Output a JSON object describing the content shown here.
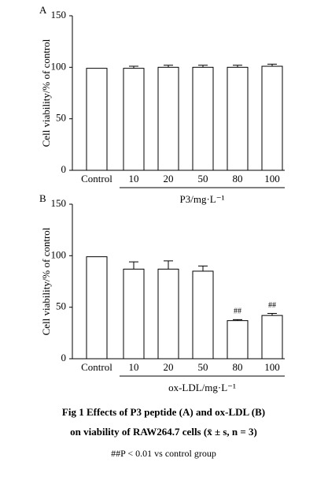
{
  "chart_data": [
    {
      "type": "bar",
      "panel": "A",
      "ylabel": "Cell viability/% of control",
      "xlabel": "P3/mg·L⁻¹",
      "categories": [
        "Control",
        "10",
        "20",
        "50",
        "80",
        "100"
      ],
      "values": [
        99,
        99,
        100,
        100,
        100,
        101
      ],
      "errors": [
        null,
        2,
        2,
        2,
        2,
        2
      ],
      "color": "#ffffff",
      "ylim": [
        0,
        150
      ],
      "yticks": [
        0,
        50,
        100,
        150
      ],
      "annotations": []
    },
    {
      "type": "bar",
      "panel": "B",
      "ylabel": "Cell viability/% of control",
      "xlabel": "ox-LDL/mg·L⁻¹",
      "categories": [
        "Control",
        "10",
        "20",
        "50",
        "80",
        "100"
      ],
      "values": [
        99,
        87,
        87,
        85,
        37,
        42
      ],
      "errors": [
        null,
        7,
        8,
        5,
        1,
        2
      ],
      "color": "#ffffff",
      "ylim": [
        0,
        150
      ],
      "yticks": [
        0,
        50,
        100,
        150
      ],
      "annotations": [
        {
          "category": "80",
          "text": "##"
        },
        {
          "category": "100",
          "text": "##"
        }
      ]
    }
  ],
  "caption": [
    "Fig 1   Effects of P3 peptide (A) and ox-LDL (B)",
    "on viability of RAW264.7 cells (x̄ ± s, n = 3)",
    "##P < 0.01 vs control group"
  ]
}
